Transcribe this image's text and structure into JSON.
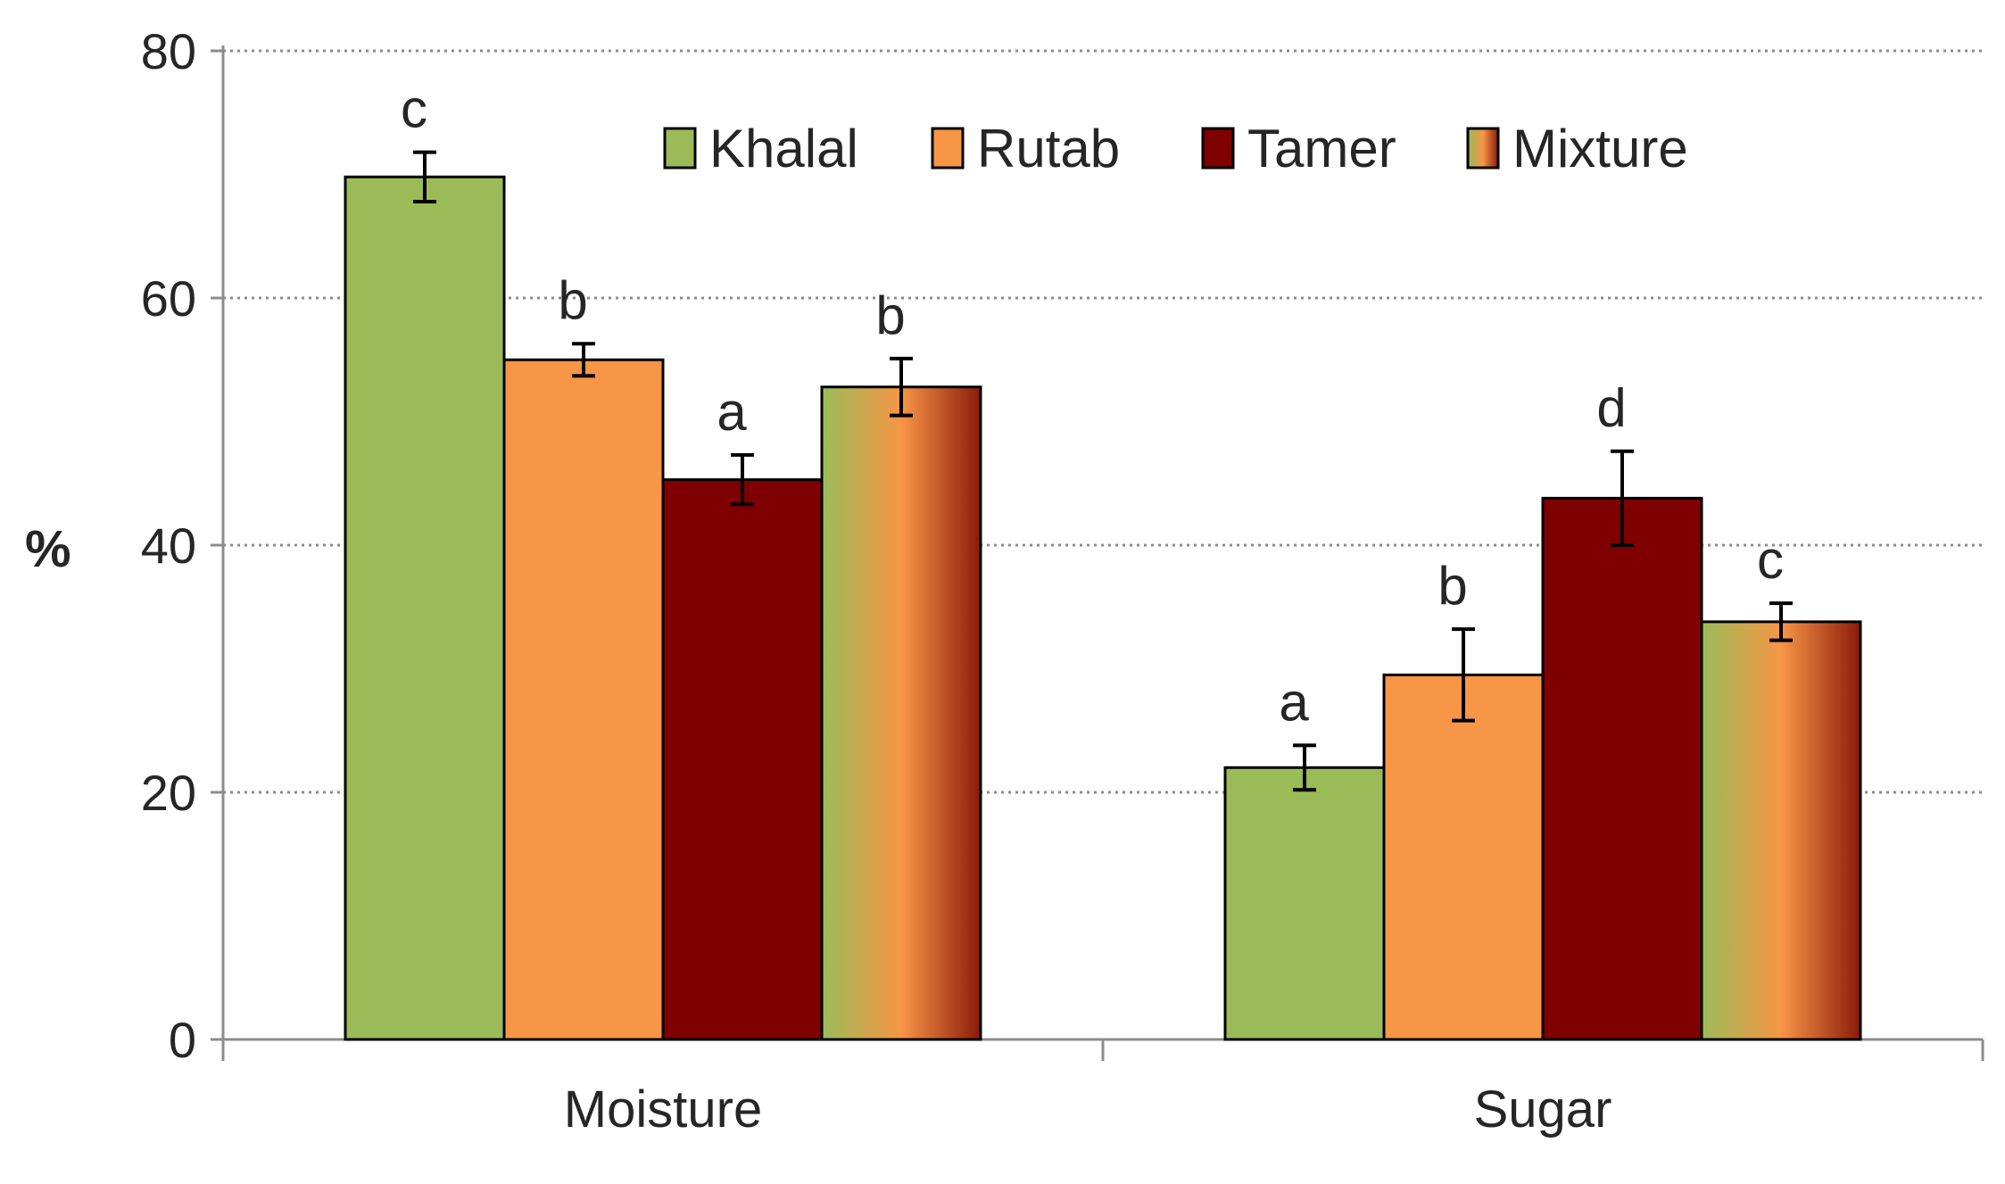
{
  "chart_data": {
    "type": "bar",
    "title": "",
    "xlabel": "",
    "ylabel": "%",
    "ylim": [
      0,
      80
    ],
    "yticks": [
      0,
      20,
      40,
      60,
      80
    ],
    "grid": true,
    "legend_position": "top-right",
    "categories": [
      "Moisture",
      "Sugar"
    ],
    "series": [
      {
        "name": "Khalal",
        "color": "#9bbb59",
        "values": [
          69.8,
          22.0
        ],
        "errors": [
          2.0,
          1.8
        ],
        "letters": [
          "c",
          "a"
        ]
      },
      {
        "name": "Rutab",
        "color": "#f79646",
        "values": [
          55.0,
          29.5
        ],
        "errors": [
          1.3,
          3.7
        ],
        "letters": [
          "b",
          "b"
        ]
      },
      {
        "name": "Tamer",
        "color": "#7f0000",
        "values": [
          45.3,
          43.8
        ],
        "errors": [
          2.0,
          3.8
        ],
        "letters": [
          "a",
          "d"
        ]
      },
      {
        "name": "Mixture",
        "color": "gradient",
        "gradient_colors": [
          "#9bbb59",
          "#f79646",
          "#8b1a0a"
        ],
        "values": [
          52.8,
          33.8
        ],
        "errors": [
          2.3,
          1.5
        ],
        "letters": [
          "b",
          "c"
        ]
      }
    ]
  }
}
